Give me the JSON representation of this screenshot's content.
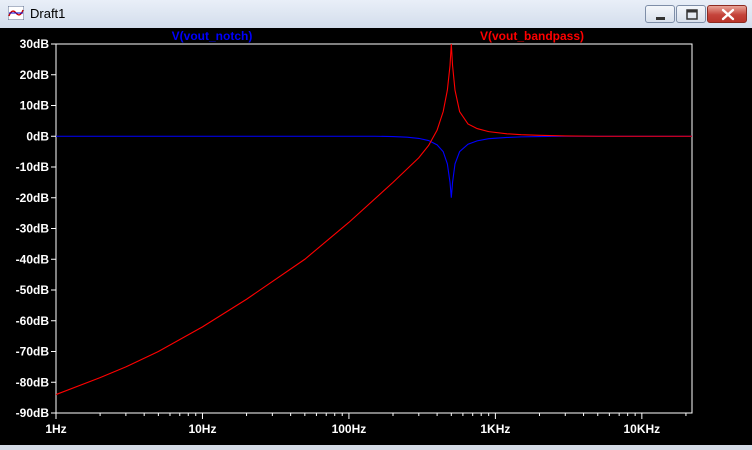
{
  "window": {
    "title": "Draft1"
  },
  "chart_data": {
    "type": "line",
    "xscale": "log",
    "xlim": [
      1,
      22000
    ],
    "ylim": [
      -90,
      30
    ],
    "grid": false,
    "background": "#000000",
    "x_ticks": [
      {
        "value": 1,
        "label": "1Hz"
      },
      {
        "value": 10,
        "label": "10Hz"
      },
      {
        "value": 100,
        "label": "100Hz"
      },
      {
        "value": 1000,
        "label": "1KHz"
      },
      {
        "value": 10000,
        "label": "10KHz"
      }
    ],
    "y_ticks": [
      {
        "value": 30,
        "label": "30dB"
      },
      {
        "value": 20,
        "label": "20dB"
      },
      {
        "value": 10,
        "label": "10dB"
      },
      {
        "value": 0,
        "label": "0dB"
      },
      {
        "value": -10,
        "label": "-10dB"
      },
      {
        "value": -20,
        "label": "-20dB"
      },
      {
        "value": -30,
        "label": "-30dB"
      },
      {
        "value": -40,
        "label": "-40dB"
      },
      {
        "value": -50,
        "label": "-50dB"
      },
      {
        "value": -60,
        "label": "-60dB"
      },
      {
        "value": -70,
        "label": "-70dB"
      },
      {
        "value": -80,
        "label": "-80dB"
      },
      {
        "value": -90,
        "label": "-90dB"
      }
    ],
    "series": [
      {
        "name": "V(vout_notch)",
        "color": "#0000ff",
        "points": [
          [
            1,
            0
          ],
          [
            10,
            0
          ],
          [
            100,
            0
          ],
          [
            150,
            0
          ],
          [
            200,
            -0.1
          ],
          [
            250,
            -0.3
          ],
          [
            300,
            -0.7
          ],
          [
            350,
            -1.4
          ],
          [
            400,
            -2.8
          ],
          [
            440,
            -5
          ],
          [
            470,
            -9
          ],
          [
            490,
            -15
          ],
          [
            500,
            -20
          ],
          [
            510,
            -15
          ],
          [
            530,
            -9
          ],
          [
            570,
            -5
          ],
          [
            650,
            -2.6
          ],
          [
            750,
            -1.5
          ],
          [
            900,
            -0.8
          ],
          [
            1200,
            -0.4
          ],
          [
            1500,
            -0.2
          ],
          [
            2000,
            -0.1
          ],
          [
            3000,
            0
          ],
          [
            22000,
            0
          ]
        ]
      },
      {
        "name": "V(vout_bandpass)",
        "color": "#ff0000",
        "points": [
          [
            1,
            -84
          ],
          [
            2,
            -78.5
          ],
          [
            3,
            -75
          ],
          [
            5,
            -70
          ],
          [
            10,
            -62
          ],
          [
            20,
            -53
          ],
          [
            50,
            -40
          ],
          [
            100,
            -28
          ],
          [
            200,
            -15
          ],
          [
            300,
            -7
          ],
          [
            350,
            -3
          ],
          [
            400,
            2
          ],
          [
            440,
            8
          ],
          [
            470,
            15
          ],
          [
            490,
            23
          ],
          [
            500,
            30
          ],
          [
            510,
            23
          ],
          [
            530,
            15
          ],
          [
            570,
            8
          ],
          [
            650,
            4
          ],
          [
            750,
            2.5
          ],
          [
            900,
            1.5
          ],
          [
            1200,
            0.8
          ],
          [
            1500,
            0.5
          ],
          [
            2000,
            0.3
          ],
          [
            3000,
            0.1
          ],
          [
            5000,
            0
          ],
          [
            22000,
            0
          ]
        ]
      }
    ]
  }
}
